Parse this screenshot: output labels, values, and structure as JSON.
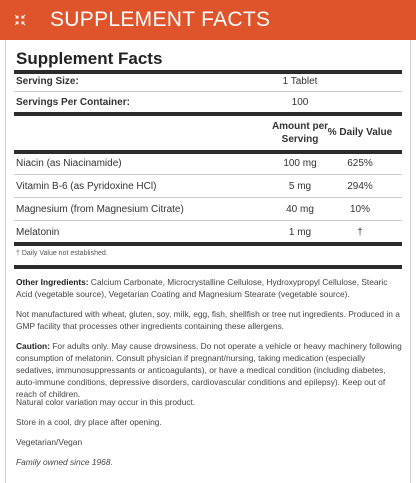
{
  "header": {
    "title": "SUPPLEMENT FACTS",
    "icon": "collapse-icon",
    "background_color": "#e0542b"
  },
  "facts": {
    "title": "Supplement Facts",
    "serving_size_label": "Serving Size:",
    "serving_size_value": "1 Tablet",
    "servings_label": "Servings Per Container:",
    "servings_value": "100",
    "amount_header": "Amount per Serving",
    "dv_header": "% Daily Value",
    "rows": [
      {
        "name": "Niacin (as Niacinamide)",
        "amount": "100 mg",
        "dv": "625%"
      },
      {
        "name": "Vitamin B-6 (as Pyridoxine HCl)",
        "amount": "5 mg",
        "dv": "294%"
      },
      {
        "name": "Magnesium (from Magnesium Citrate)",
        "amount": "40 mg",
        "dv": "10%"
      },
      {
        "name": "Melatonin",
        "amount": "1 mg",
        "dv": "†"
      }
    ],
    "footnote": "† Daily Value not established."
  },
  "other_ingredients": {
    "label": "Other Ingredients:",
    "text": "Calcium Carbonate, Microcrystalline Cellulose, Hydroxypropyl Cellulose, Stearic Acid (vegetable source), Vegetarian Coating and Magnesium Stearate (vegetable source)."
  },
  "allergen_note": "Not manufactured with wheat, gluten, soy, milk, egg, fish, shellfish or tree nut ingredients. Produced in a GMP facility that processes other ingredients containing these allergens.",
  "caution": {
    "label": "Caution:",
    "text": "For adults only. May cause drowsiness. Do not operate a vehicle or heavy machinery following consumption of melatonin. Consult physician if pregnant/nursing, taking medication (especially sedatives, immunosuppressants or anticoagulants), or have a medical condition (including diabetes, auto-immune conditions, depressive disorders, cardiovascular conditions and epilepsy). Keep out of reach of children."
  },
  "color_note": "Natural color variation may occur in this product.",
  "storage_note": "Store in a cool, dry place after opening.",
  "diet_note": "Vegetarian/Vegan",
  "family_note": "Family owned since 1968."
}
